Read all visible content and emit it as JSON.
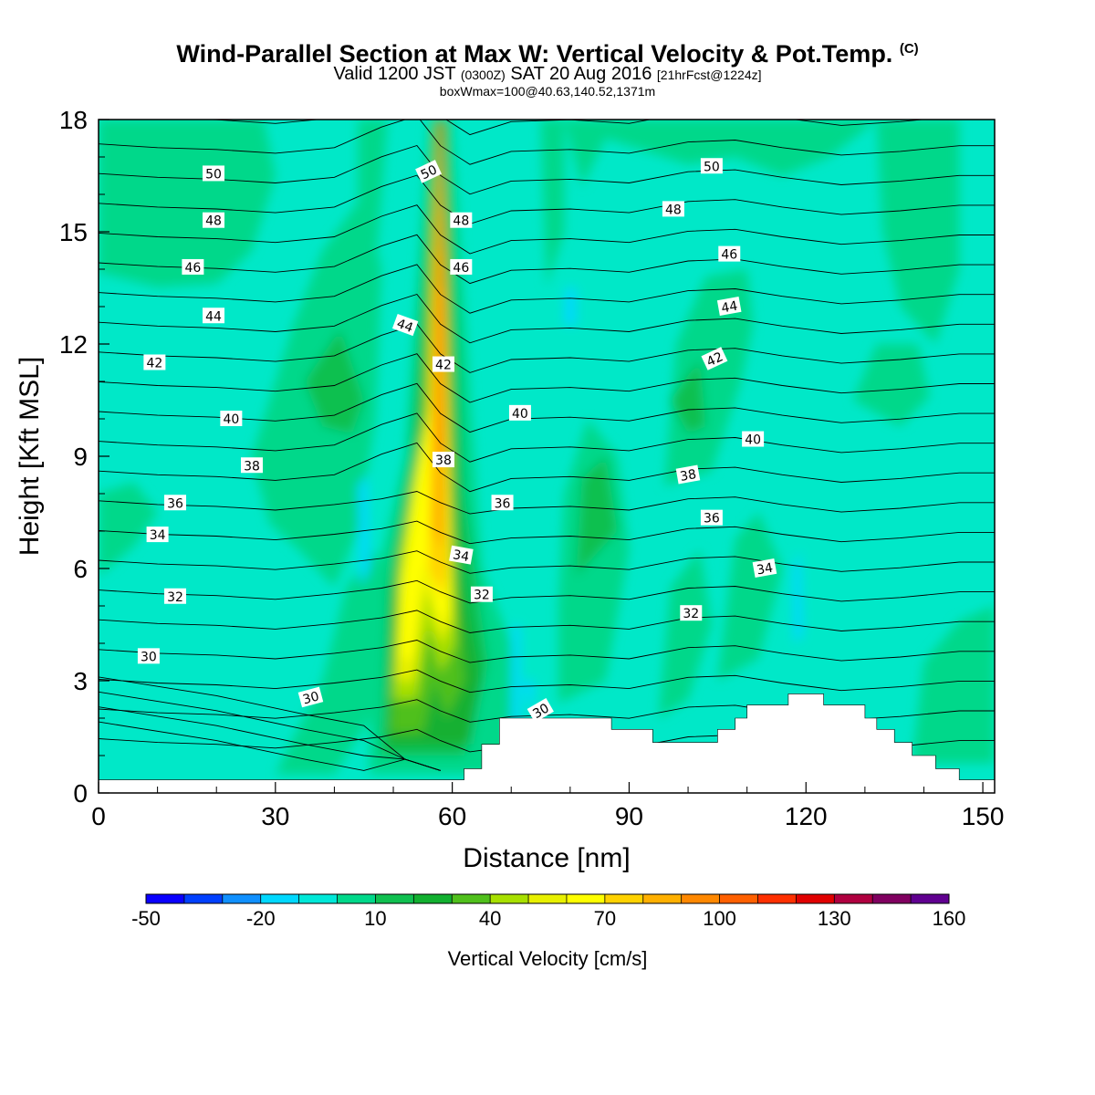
{
  "header": {
    "title_main": "Wind-Parallel Section at Max W: Vertical Velocity & Pot.Temp.",
    "title_mark": "(C)",
    "valid_prefix": "Valid 1200 JST",
    "valid_zulu": "(0300Z)",
    "valid_date": "SAT 20 Aug 2016",
    "forecast": "[21hrFcst@1224z]",
    "box_info": "boxWmax=100@40.63,140.52,1371m"
  },
  "chart_data": {
    "type": "heatmap",
    "xlabel": "Distance [nm]",
    "ylabel": "Height [Kft MSL]",
    "xlim": [
      0,
      152
    ],
    "ylim": [
      0,
      18
    ],
    "x_ticks": [
      0,
      30,
      60,
      90,
      120,
      150
    ],
    "y_ticks": [
      0,
      3,
      6,
      9,
      12,
      15,
      18
    ],
    "colorbar": {
      "title": "Vertical Velocity [cm/s]",
      "tick_labels": [
        "-50",
        "-20",
        "10",
        "40",
        "70",
        "100",
        "130",
        "160"
      ],
      "levels": [
        -50,
        -40,
        -30,
        -20,
        -10,
        0,
        10,
        20,
        30,
        40,
        50,
        60,
        70,
        80,
        90,
        100,
        110,
        120,
        130,
        140,
        150,
        160
      ],
      "colors": [
        "#0a00ff",
        "#0040ff",
        "#1090ff",
        "#00d8ff",
        "#00e8d8",
        "#00d88a",
        "#10c050",
        "#12b030",
        "#50c01c",
        "#a8e000",
        "#e8f000",
        "#ffff00",
        "#ffd200",
        "#ffb000",
        "#ff8800",
        "#ff6000",
        "#ff3000",
        "#e00000",
        "#b00040",
        "#800060",
        "#600090"
      ]
    },
    "theta_levels": [
      30,
      31,
      32,
      33,
      34,
      35,
      36,
      37,
      38,
      39,
      40,
      41,
      42,
      43,
      44,
      45,
      46,
      47,
      48,
      49,
      50
    ],
    "theta_labels": [
      {
        "text": "50",
        "x": 19.5,
        "y": 16.55,
        "rot": 0
      },
      {
        "text": "48",
        "x": 19.5,
        "y": 15.3,
        "rot": 0
      },
      {
        "text": "46",
        "x": 16,
        "y": 14.05,
        "rot": 0
      },
      {
        "text": "44",
        "x": 19.5,
        "y": 12.75,
        "rot": 0
      },
      {
        "text": "42",
        "x": 9.5,
        "y": 11.5,
        "rot": 0
      },
      {
        "text": "40",
        "x": 22.5,
        "y": 10.0,
        "rot": 0
      },
      {
        "text": "38",
        "x": 26,
        "y": 8.75,
        "rot": 0
      },
      {
        "text": "36",
        "x": 13,
        "y": 7.75,
        "rot": 0
      },
      {
        "text": "34",
        "x": 10,
        "y": 6.9,
        "rot": 0
      },
      {
        "text": "32",
        "x": 13,
        "y": 5.25,
        "rot": 0
      },
      {
        "text": "30",
        "x": 8.5,
        "y": 3.65,
        "rot": 0
      },
      {
        "text": "30",
        "x": 36,
        "y": 2.55,
        "rot": 15
      },
      {
        "text": "50",
        "x": 56,
        "y": 16.6,
        "rot": 25
      },
      {
        "text": "48",
        "x": 61.5,
        "y": 15.3,
        "rot": 0
      },
      {
        "text": "46",
        "x": 61.5,
        "y": 14.05,
        "rot": 0
      },
      {
        "text": "44",
        "x": 52,
        "y": 12.5,
        "rot": -20
      },
      {
        "text": "42",
        "x": 58.5,
        "y": 11.45,
        "rot": 0
      },
      {
        "text": "40",
        "x": 71.5,
        "y": 10.15,
        "rot": 0
      },
      {
        "text": "38",
        "x": 58.5,
        "y": 8.9,
        "rot": 0
      },
      {
        "text": "36",
        "x": 68.5,
        "y": 7.75,
        "rot": 0
      },
      {
        "text": "34",
        "x": 61.5,
        "y": 6.35,
        "rot": -10
      },
      {
        "text": "32",
        "x": 65,
        "y": 5.3,
        "rot": 0
      },
      {
        "text": "30",
        "x": 75,
        "y": 2.2,
        "rot": 30
      },
      {
        "text": "50",
        "x": 104,
        "y": 16.75,
        "rot": 0
      },
      {
        "text": "48",
        "x": 97.5,
        "y": 15.6,
        "rot": 0
      },
      {
        "text": "46",
        "x": 107,
        "y": 14.4,
        "rot": 0
      },
      {
        "text": "44",
        "x": 107,
        "y": 13.0,
        "rot": 10
      },
      {
        "text": "42",
        "x": 104.5,
        "y": 11.6,
        "rot": 25
      },
      {
        "text": "40",
        "x": 111,
        "y": 9.45,
        "rot": 0
      },
      {
        "text": "38",
        "x": 100,
        "y": 8.5,
        "rot": 10
      },
      {
        "text": "36",
        "x": 104,
        "y": 7.35,
        "rot": 0
      },
      {
        "text": "34",
        "x": 113,
        "y": 6.0,
        "rot": 10
      },
      {
        "text": "32",
        "x": 100.5,
        "y": 4.8,
        "rot": 0
      }
    ],
    "terrain_kft": [
      [
        0,
        0.35
      ],
      [
        62,
        0.35
      ],
      [
        62,
        0.65
      ],
      [
        65,
        0.65
      ],
      [
        65,
        1.3
      ],
      [
        68,
        1.3
      ],
      [
        68,
        2.0
      ],
      [
        87,
        2.0
      ],
      [
        87,
        1.7
      ],
      [
        94,
        1.7
      ],
      [
        94,
        1.35
      ],
      [
        105,
        1.35
      ],
      [
        105,
        1.7
      ],
      [
        108,
        1.7
      ],
      [
        108,
        2.0
      ],
      [
        110,
        2.0
      ],
      [
        110,
        2.35
      ],
      [
        117,
        2.35
      ],
      [
        117,
        2.65
      ],
      [
        123,
        2.65
      ],
      [
        123,
        2.35
      ],
      [
        130,
        2.35
      ],
      [
        130,
        2.0
      ],
      [
        132,
        2.0
      ],
      [
        132,
        1.7
      ],
      [
        135,
        1.7
      ],
      [
        135,
        1.35
      ],
      [
        138,
        1.35
      ],
      [
        138,
        1.0
      ],
      [
        142,
        1.0
      ],
      [
        142,
        0.65
      ],
      [
        146,
        0.65
      ],
      [
        146,
        0.35
      ],
      [
        152,
        0.35
      ]
    ]
  }
}
